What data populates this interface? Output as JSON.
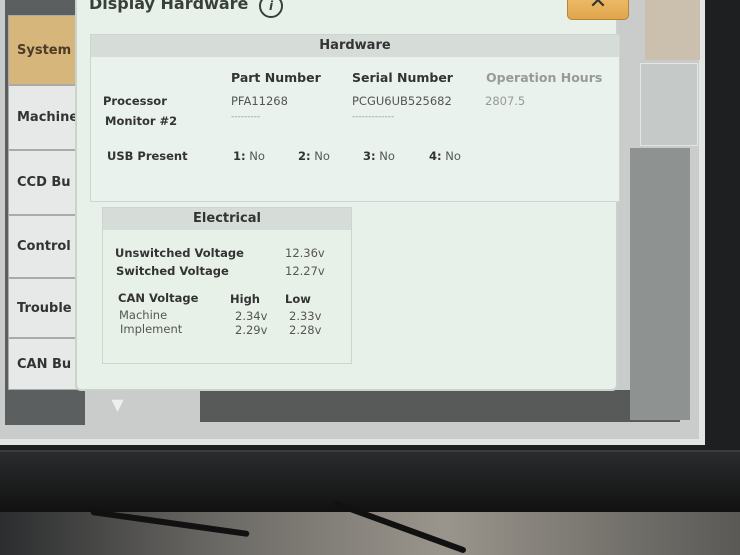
{
  "window": {
    "title": "Display Hardware",
    "info_icon": "info-icon",
    "close_icon": "close-x-icon"
  },
  "tabs": [
    {
      "label": "System",
      "active": true
    },
    {
      "label": "Machine"
    },
    {
      "label": "CCD Bu"
    },
    {
      "label": "Control"
    },
    {
      "label": "Trouble"
    },
    {
      "label": "CAN Bu"
    }
  ],
  "scroll_down_icon": "triangle-down-icon",
  "hardware": {
    "title": "Hardware",
    "columns": [
      "Part Number",
      "Serial Number",
      "Operation Hours"
    ],
    "rows": [
      {
        "label": "Processor",
        "part": "PFA11268",
        "serial": "PCGU6UB525682",
        "hours": "2807.5"
      },
      {
        "label": "Monitor #2",
        "part": "---------",
        "serial": "-------------",
        "hours": ""
      }
    ],
    "usb": {
      "label": "USB Present",
      "ports": [
        {
          "n": "1:",
          "v": "No"
        },
        {
          "n": "2:",
          "v": "No"
        },
        {
          "n": "3:",
          "v": "No"
        },
        {
          "n": "4:",
          "v": "No"
        }
      ]
    }
  },
  "electrical": {
    "title": "Electrical",
    "unswitched": {
      "label": "Unswitched Voltage",
      "value": "12.36v"
    },
    "switched": {
      "label": "Switched Voltage",
      "value": "12.27v"
    },
    "can": {
      "label": "CAN Voltage",
      "high": "High",
      "low": "Low",
      "rows": [
        {
          "label": "Machine",
          "high": "2.34v",
          "low": "2.33v"
        },
        {
          "label": "Implement",
          "high": "2.29v",
          "low": "2.28v"
        }
      ]
    }
  },
  "colors": {
    "active_tab": "#d7b67c",
    "close_button": "#e8b460",
    "dialog_bg": "#e7f1ea"
  }
}
